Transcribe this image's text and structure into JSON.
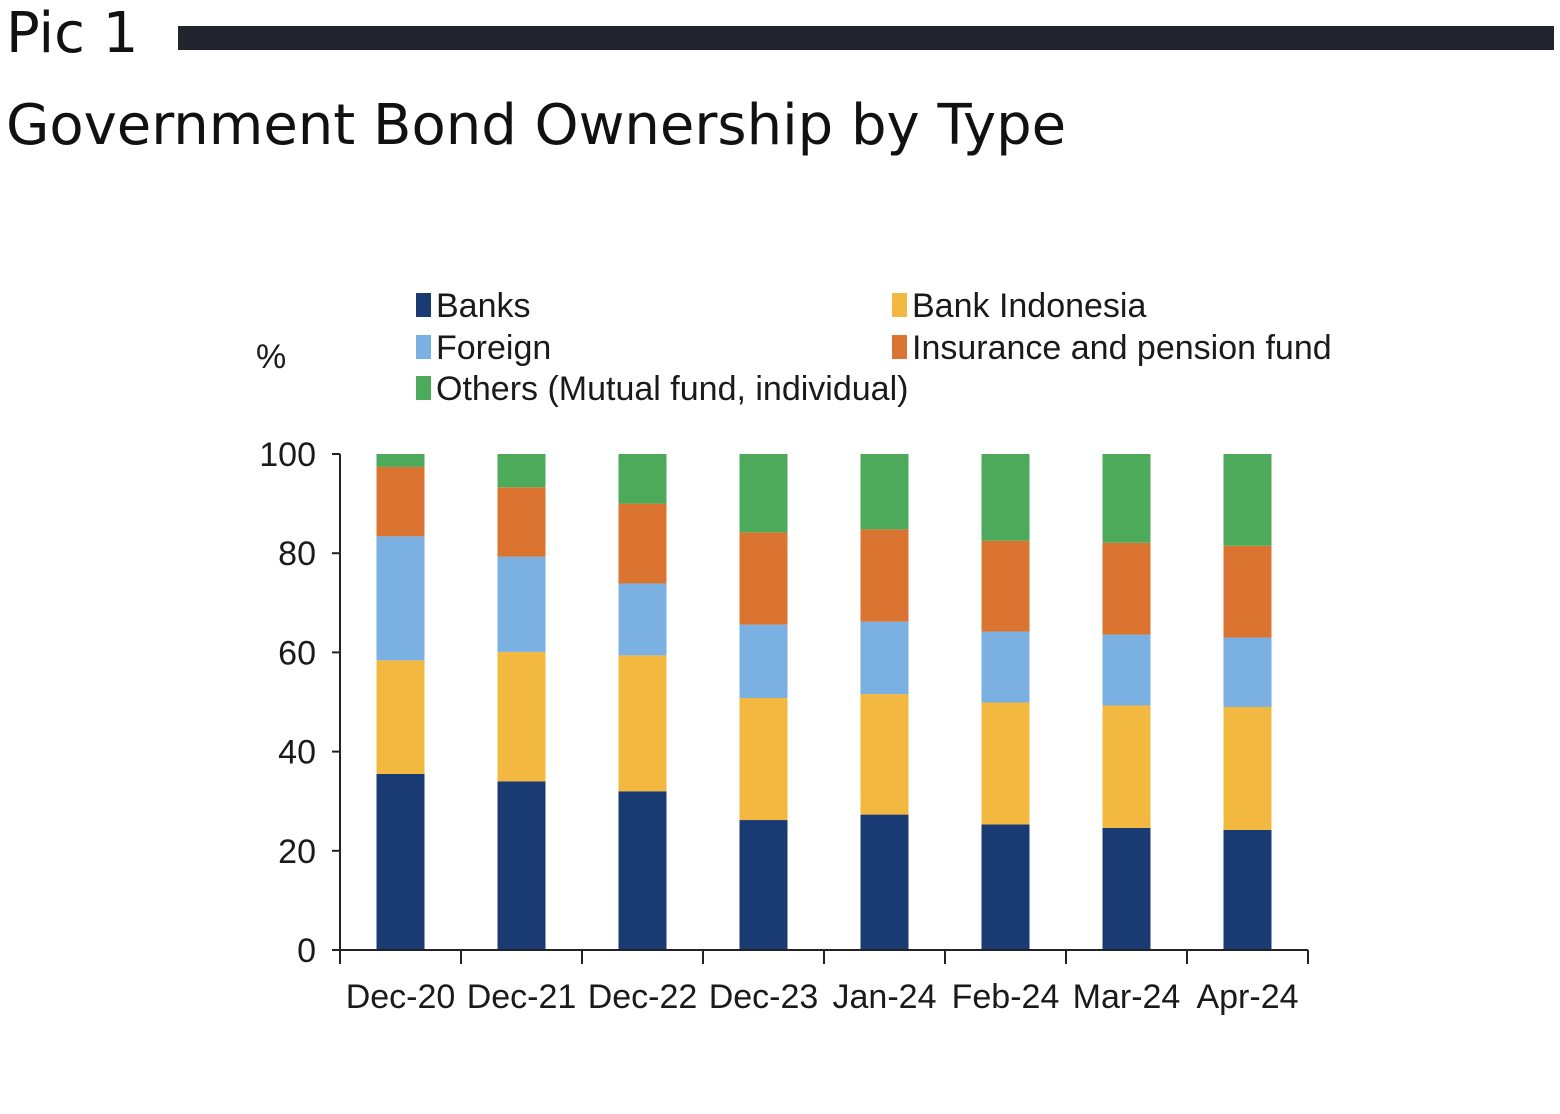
{
  "header": {
    "pic_label": "Pic 1",
    "title": "Government Bond Ownership by Type"
  },
  "chart_data": {
    "type": "bar",
    "stacked": true,
    "title": "",
    "xlabel": "",
    "ylabel": "%",
    "ylim": [
      0,
      100
    ],
    "yticks": [
      0,
      20,
      40,
      60,
      80,
      100
    ],
    "grid": false,
    "legend_position": "top",
    "categories": [
      "Dec-20",
      "Dec-21",
      "Dec-22",
      "Dec-23",
      "Jan-24",
      "Feb-24",
      "Mar-24",
      "Apr-24"
    ],
    "series": [
      {
        "name": "Banks",
        "color": "#1a3a73",
        "values": [
          35.5,
          34,
          32,
          26.2,
          27.3,
          25.3,
          24.6,
          24.2
        ]
      },
      {
        "name": "Bank Indonesia",
        "color": "#f2b840",
        "values": [
          22.9,
          26.1,
          27.4,
          24.6,
          24.3,
          24.6,
          24.7,
          24.8
        ]
      },
      {
        "name": "Foreign",
        "color": "#7ab0e2",
        "values": [
          25,
          19.2,
          14.5,
          14.8,
          14.6,
          14.3,
          14.3,
          14.0
        ]
      },
      {
        "name": "Insurance and pension fund",
        "color": "#db7430",
        "values": [
          14,
          14,
          16.1,
          18.6,
          18.6,
          18.3,
          18.5,
          18.5
        ]
      },
      {
        "name": "Others (Mutual fund, individual)",
        "color": "#4caa5a",
        "values": [
          2.6,
          6.7,
          10,
          15.8,
          15.2,
          17.5,
          17.9,
          18.5
        ]
      }
    ]
  }
}
